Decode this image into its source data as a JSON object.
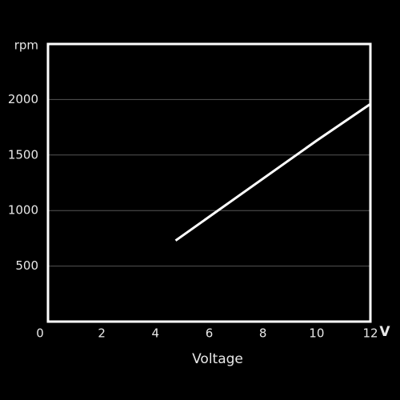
{
  "chart_data": {
    "type": "line",
    "x_label": "Voltage",
    "x_unit": "V",
    "y_unit": "rpm",
    "x": [
      4.75,
      10,
      12
    ],
    "series": [
      {
        "values": [
          730,
          1630,
          1960
        ],
        "color": "#ffffff"
      }
    ],
    "xlim": [
      0,
      12
    ],
    "xticks": [
      0,
      2,
      4,
      6,
      8,
      10,
      12
    ],
    "ylim": [
      0,
      2500
    ],
    "yticks": [
      500,
      1000,
      1500,
      2000
    ],
    "grid": true
  }
}
